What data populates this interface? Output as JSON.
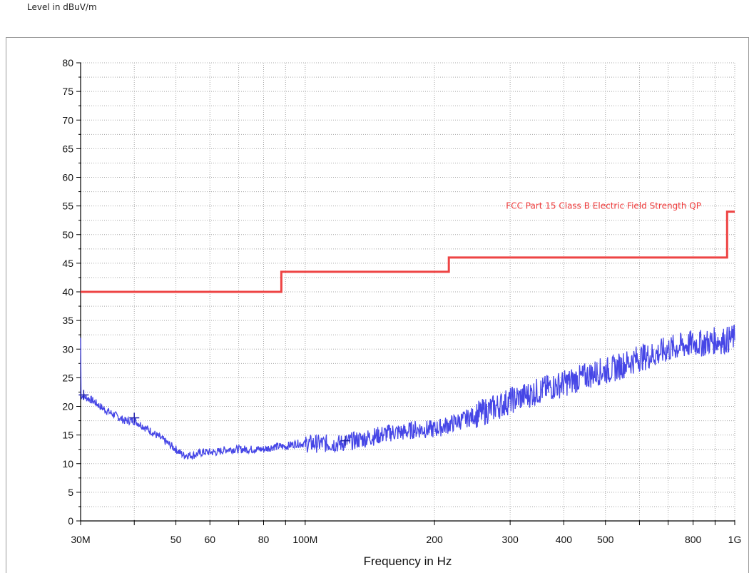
{
  "chart_data": {
    "type": "line",
    "ylabel": "Level in dBuV/m",
    "xlabel": "Frequency in Hz",
    "x_scale": "log",
    "xlim": [
      30,
      1000
    ],
    "ylim": [
      0,
      80
    ],
    "grid": true,
    "y_ticks": [
      0,
      5,
      10,
      15,
      20,
      25,
      30,
      35,
      40,
      45,
      50,
      55,
      60,
      65,
      70,
      75,
      80
    ],
    "x_ticks": [
      {
        "value": 30,
        "label": "30M"
      },
      {
        "value": 40,
        "label": ""
      },
      {
        "value": 50,
        "label": "50"
      },
      {
        "value": 60,
        "label": "60"
      },
      {
        "value": 70,
        "label": ""
      },
      {
        "value": 80,
        "label": "80"
      },
      {
        "value": 90,
        "label": ""
      },
      {
        "value": 100,
        "label": "100M"
      },
      {
        "value": 200,
        "label": "200"
      },
      {
        "value": 300,
        "label": "300"
      },
      {
        "value": 400,
        "label": "400"
      },
      {
        "value": 500,
        "label": "500"
      },
      {
        "value": 600,
        "label": ""
      },
      {
        "value": 700,
        "label": ""
      },
      {
        "value": 800,
        "label": "800"
      },
      {
        "value": 900,
        "label": ""
      },
      {
        "value": 1000,
        "label": "1G"
      }
    ],
    "series": [
      {
        "name": "FCC Part 15 Class B Electric Field Strength QP",
        "color": "#ee4444",
        "x": [
          30,
          88,
          88,
          216,
          216,
          960,
          960,
          1000
        ],
        "y": [
          40,
          40,
          43.5,
          43.5,
          46,
          46,
          54,
          54
        ]
      },
      {
        "color": "#4646e6",
        "x": [
          30,
          32,
          34,
          36,
          38,
          40,
          42,
          44,
          46,
          48,
          50,
          52,
          55,
          58,
          62,
          66,
          70,
          75,
          80,
          85,
          90,
          95,
          100,
          110,
          120,
          130,
          140,
          150,
          160,
          170,
          180,
          190,
          200,
          220,
          240,
          260,
          280,
          300,
          330,
          360,
          400,
          440,
          480,
          520,
          560,
          600,
          650,
          700,
          750,
          800,
          850,
          900,
          950,
          1000
        ],
        "y": [
          22,
          21,
          19.5,
          18.5,
          17.5,
          17.5,
          16.5,
          15.5,
          14.5,
          13.5,
          12.5,
          11.5,
          11.5,
          12,
          12,
          12.5,
          12.5,
          12.5,
          12.5,
          13,
          13,
          13.5,
          13.5,
          13.5,
          13.5,
          14,
          14.5,
          15,
          15.5,
          15.5,
          16,
          16,
          16,
          17,
          18,
          19,
          20,
          21,
          22,
          23,
          24,
          25,
          26,
          26.5,
          27.5,
          28.5,
          29,
          30,
          30.5,
          31,
          31,
          31.5,
          31.5,
          32
        ]
      }
    ],
    "markers": [
      {
        "x": 30.5,
        "y": 22
      },
      {
        "x": 40,
        "y": 18
      },
      {
        "x": 124,
        "y": 14
      }
    ]
  }
}
